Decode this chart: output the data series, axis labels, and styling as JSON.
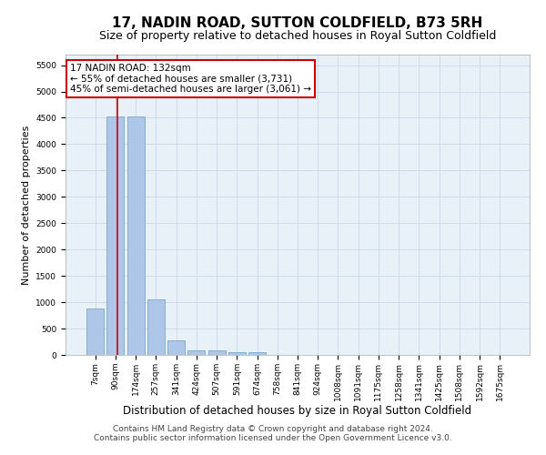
{
  "title": "17, NADIN ROAD, SUTTON COLDFIELD, B73 5RH",
  "subtitle": "Size of property relative to detached houses in Royal Sutton Coldfield",
  "xlabel": "Distribution of detached houses by size in Royal Sutton Coldfield",
  "ylabel": "Number of detached properties",
  "categories": [
    "7sqm",
    "90sqm",
    "174sqm",
    "257sqm",
    "341sqm",
    "424sqm",
    "507sqm",
    "591sqm",
    "674sqm",
    "758sqm",
    "841sqm",
    "924sqm",
    "1008sqm",
    "1091sqm",
    "1175sqm",
    "1258sqm",
    "1341sqm",
    "1425sqm",
    "1508sqm",
    "1592sqm",
    "1675sqm"
  ],
  "values": [
    880,
    4530,
    4530,
    1050,
    270,
    90,
    80,
    50,
    50,
    0,
    0,
    0,
    0,
    0,
    0,
    0,
    0,
    0,
    0,
    0,
    0
  ],
  "bar_color": "#aec6e8",
  "bar_edge_color": "#6a9cc0",
  "property_line_x": 1.075,
  "annotation_text": "17 NADIN ROAD: 132sqm\n← 55% of detached houses are smaller (3,731)\n45% of semi-detached houses are larger (3,061) →",
  "annotation_box_color": "#ffffff",
  "annotation_box_edge": "#cc0000",
  "vline_color": "#cc0000",
  "ylim": [
    0,
    5700
  ],
  "yticks": [
    0,
    500,
    1000,
    1500,
    2000,
    2500,
    3000,
    3500,
    4000,
    4500,
    5000,
    5500
  ],
  "footer1": "Contains HM Land Registry data © Crown copyright and database right 2024.",
  "footer2": "Contains public sector information licensed under the Open Government Licence v3.0.",
  "background_color": "#ffffff",
  "plot_bg_color": "#e8f0f8",
  "grid_color": "#c8d8e8",
  "title_fontsize": 11,
  "subtitle_fontsize": 9,
  "xlabel_fontsize": 8.5,
  "ylabel_fontsize": 8,
  "tick_fontsize": 6.5,
  "annotation_fontsize": 7.5,
  "footer_fontsize": 6.5
}
